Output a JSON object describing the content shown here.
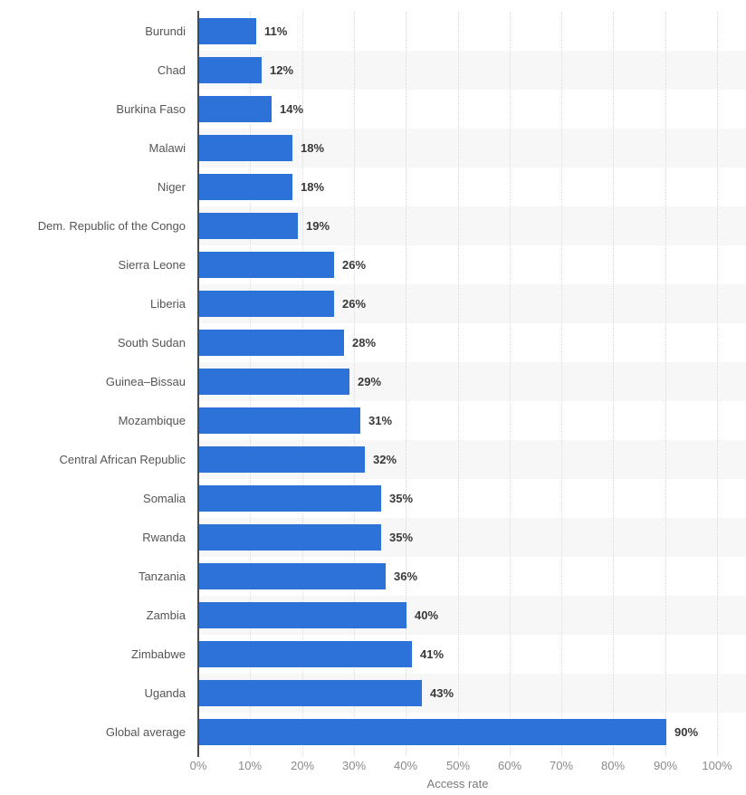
{
  "chart_data": {
    "type": "bar",
    "orientation": "horizontal",
    "xlabel": "Access rate",
    "xlim": [
      0,
      100
    ],
    "x_ticks": [
      "0%",
      "10%",
      "20%",
      "30%",
      "40%",
      "50%",
      "60%",
      "70%",
      "80%",
      "90%",
      "100%"
    ],
    "grid": "vertical-dotted-every-10pct",
    "legend": "none",
    "categories": [
      "Burundi",
      "Chad",
      "Burkina Faso",
      "Malawi",
      "Niger",
      "Dem. Republic of the Congo",
      "Sierra Leone",
      "Liberia",
      "South Sudan",
      "Guinea–Bissau",
      "Mozambique",
      "Central African Republic",
      "Somalia",
      "Rwanda",
      "Tanzania",
      "Zambia",
      "Zimbabwe",
      "Uganda",
      "Global average"
    ],
    "values": [
      11,
      12,
      14,
      18,
      18,
      19,
      26,
      26,
      28,
      29,
      31,
      32,
      35,
      35,
      36,
      40,
      41,
      43,
      90
    ],
    "value_labels": [
      "11%",
      "12%",
      "14%",
      "18%",
      "18%",
      "19%",
      "26%",
      "26%",
      "28%",
      "29%",
      "31%",
      "32%",
      "35%",
      "35%",
      "36%",
      "40%",
      "41%",
      "43%",
      "90%"
    ]
  },
  "colors": {
    "bar": "#2d72d9",
    "stripe": "#f7f7f7",
    "grid": "#d9d9d9",
    "axis": "#4a4a4a",
    "cat": "#555555",
    "val": "#383838",
    "tick": "#8a8a8a",
    "xtitle": "#7a7a7a",
    "bg": "#ffffff"
  }
}
